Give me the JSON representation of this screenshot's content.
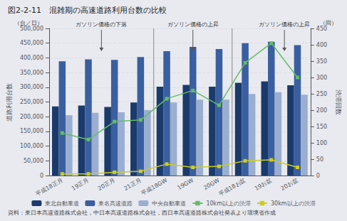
{
  "chart_data": {
    "type": "bar",
    "title": "図2-2-11　混雑期の高速道路利用台数の比較",
    "source": "資料：東日本高速道路株式会社，中日本高速道路株式会社，西日本高速道路株式会社発表より環境省作成",
    "categories": [
      "平成18正月",
      "19正月",
      "20正月",
      "21正月",
      "平成18GW",
      "19GW",
      "20GW",
      "平成18お盆",
      "19お盆",
      "20お盆"
    ],
    "series": [
      {
        "name": "東北自動車道",
        "type": "bar",
        "color": "#1a3a6b",
        "values": [
          235000,
          238000,
          233000,
          248000,
          302000,
          308000,
          302000,
          315000,
          320000,
          307000
        ]
      },
      {
        "name": "東名高速道路",
        "type": "bar",
        "color": "#3a5fa0",
        "values": [
          388000,
          395000,
          393000,
          403000,
          423000,
          437000,
          430000,
          450000,
          455000,
          443000
        ]
      },
      {
        "name": "中央自動車道",
        "type": "bar",
        "color": "#9aaed0",
        "values": [
          205000,
          213000,
          215000,
          223000,
          248000,
          258000,
          258000,
          277000,
          283000,
          275000
        ]
      },
      {
        "name": "10km以上の渋滞",
        "type": "line",
        "axis": "y2",
        "marker": "square",
        "color": "#66bb66",
        "values": [
          130,
          110,
          165,
          170,
          235,
          260,
          215,
          345,
          405,
          300
        ]
      },
      {
        "name": "30km以上の渋滞",
        "type": "line",
        "axis": "y2",
        "marker": "square",
        "color": "#cccc22",
        "values": [
          5,
          5,
          10,
          13,
          35,
          25,
          28,
          45,
          48,
          25
        ]
      }
    ],
    "ylabel": "道路利用台数",
    "y2label": "渋滞回数",
    "y_units": "（台／日）",
    "y2_units": "（回）",
    "ylim": [
      0,
      500000
    ],
    "yticks": [
      0,
      {
        "value": 50000,
        "label": "50,000"
      },
      {
        "value": 100000,
        "label": "100,000"
      },
      {
        "value": 150000,
        "label": "150,000"
      },
      {
        "value": 200000,
        "label": "200,000"
      },
      {
        "value": 250000,
        "label": "250,000"
      },
      {
        "value": 300000,
        "label": "300,000"
      },
      {
        "value": 350000,
        "label": "350,000"
      },
      {
        "value": 400000,
        "label": "400,000"
      },
      {
        "value": 450000,
        "label": "450,000"
      },
      {
        "value": 500000,
        "label": "500,000"
      }
    ],
    "y2lim": [
      0,
      450
    ],
    "y2ticks": [
      0,
      50,
      100,
      150,
      200,
      250,
      300,
      350,
      400,
      450
    ],
    "grid": true,
    "legend": "bottom",
    "annotations": [
      {
        "text": "ガソリン価格の下落",
        "x": 1.5
      },
      {
        "text": "ガソリン価格の上昇",
        "x": 5.0
      },
      {
        "text": "ガソリン価格の上昇",
        "x": 8.5
      }
    ],
    "separators": [
      3.5,
      6.5
    ],
    "background_color": "#e8eaf0"
  }
}
